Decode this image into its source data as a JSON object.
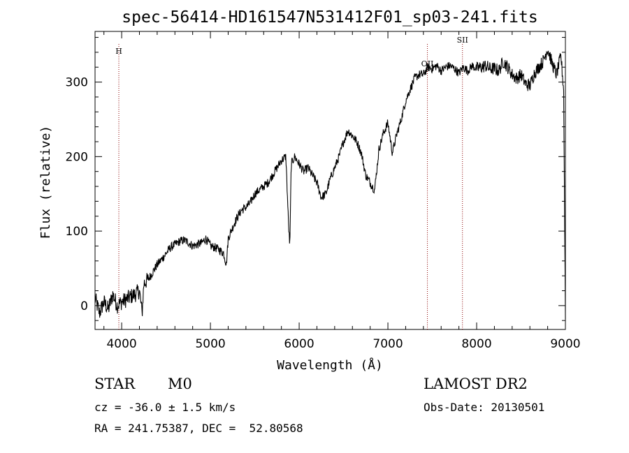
{
  "chart_data": {
    "type": "line",
    "title": "spec-56414-HD161547N531412F01_sp03-241.fits",
    "xlabel": "Wavelength (Å)",
    "ylabel": "Flux (relative)",
    "xlim": [
      3700,
      9000
    ],
    "ylim": [
      -32,
      368
    ],
    "x_ticks": [
      4000,
      5000,
      6000,
      7000,
      8000,
      9000
    ],
    "y_ticks": [
      0,
      100,
      200,
      300
    ],
    "grid": false,
    "line_color": "#000000",
    "marker_color": "#8b0000",
    "lines": [
      {
        "label": "H",
        "wavelength": 3968
      },
      {
        "label": "OII",
        "wavelength": 7445
      },
      {
        "label": "SII",
        "wavelength": 7840
      }
    ],
    "series": [
      {
        "x": [
          3700,
          3750,
          3800,
          3850,
          3900,
          3950,
          4000,
          4050,
          4100,
          4150,
          4200,
          4230,
          4250,
          4300,
          4350,
          4400,
          4450,
          4500,
          4550,
          4600,
          4650,
          4700,
          4750,
          4800,
          4850,
          4900,
          4950,
          5000,
          5050,
          5100,
          5150,
          5180,
          5200,
          5250,
          5300,
          5350,
          5400,
          5450,
          5500,
          5550,
          5600,
          5650,
          5700,
          5750,
          5800,
          5850,
          5880,
          5895,
          5910,
          5950,
          6000,
          6050,
          6100,
          6150,
          6200,
          6250,
          6300,
          6350,
          6400,
          6450,
          6500,
          6550,
          6600,
          6650,
          6700,
          6750,
          6800,
          6850,
          6900,
          6950,
          7000,
          7050,
          7100,
          7150,
          7200,
          7250,
          7300,
          7350,
          7400,
          7450,
          7500,
          7550,
          7600,
          7650,
          7700,
          7750,
          7800,
          7850,
          7900,
          7950,
          8000,
          8050,
          8100,
          8150,
          8200,
          8250,
          8300,
          8350,
          8400,
          8450,
          8500,
          8550,
          8600,
          8650,
          8700,
          8750,
          8800,
          8850,
          8900,
          8950,
          8980,
          9000
        ],
        "y": [
          10,
          -10,
          5,
          -5,
          15,
          0,
          5,
          8,
          12,
          15,
          20,
          -10,
          30,
          35,
          45,
          55,
          62,
          70,
          78,
          82,
          86,
          88,
          85,
          80,
          82,
          84,
          90,
          80,
          78,
          75,
          70,
          55,
          90,
          105,
          118,
          128,
          132,
          138,
          150,
          155,
          160,
          165,
          175,
          185,
          195,
          200,
          110,
          80,
          190,
          200,
          190,
          180,
          185,
          175,
          165,
          145,
          150,
          170,
          185,
          200,
          220,
          235,
          228,
          220,
          205,
          175,
          165,
          155,
          210,
          232,
          245,
          205,
          230,
          250,
          275,
          290,
          305,
          310,
          310,
          320,
          318,
          322,
          315,
          320,
          322,
          318,
          312,
          320,
          315,
          322,
          318,
          320,
          322,
          318,
          318,
          315,
          328,
          320,
          310,
          305,
          310,
          298,
          295,
          312,
          320,
          328,
          345,
          325,
          310,
          335,
          290,
          -15
        ]
      }
    ]
  },
  "info": {
    "obj_type": "STAR",
    "subclass": "M0",
    "survey": "LAMOST DR2",
    "cz": "cz = -36.0 ± 1.5 km/s",
    "obs_date": "Obs-Date: 20130501",
    "coords": "RA = 241.75387, DEC =  52.80568"
  }
}
